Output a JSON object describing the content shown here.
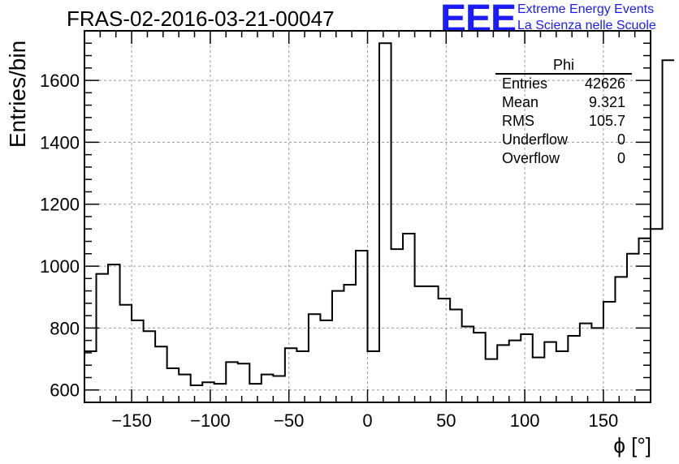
{
  "chart_data": {
    "type": "bar",
    "title": "FRAS-02-2016-03-21-00047",
    "xlabel": "ϕ [°]",
    "ylabel": "Entries/bin",
    "xlim": [
      -180,
      180
    ],
    "ylim": [
      560,
      1760
    ],
    "grid": true,
    "x_ticks": [
      -150,
      -100,
      -50,
      0,
      50,
      100,
      150
    ],
    "x_tick_labels": [
      "−150",
      "−100",
      "−50",
      "0",
      "50",
      "100",
      "150"
    ],
    "y_ticks": [
      600,
      800,
      1000,
      1200,
      1400,
      1600
    ],
    "y_tick_labels": [
      "600",
      "800",
      "1000",
      "1200",
      "1400",
      "1600"
    ],
    "bin_edges_start": -180,
    "bin_width": 7.5,
    "values": [
      725,
      975,
      1005,
      875,
      825,
      790,
      740,
      670,
      650,
      615,
      625,
      620,
      690,
      685,
      620,
      650,
      645,
      735,
      725,
      845,
      825,
      920,
      940,
      1050,
      725,
      1720,
      1055,
      1105,
      935,
      935,
      895,
      860,
      805,
      785,
      700,
      745,
      760,
      780,
      705,
      755,
      725,
      775,
      815,
      800,
      885,
      965,
      1040,
      1090,
      1120,
      1665
    ]
  },
  "logo": {
    "letters": "EEE",
    "line1": "Extreme Energy Events",
    "line2": "La Scienza nelle Scuole"
  },
  "stats": {
    "name": "Phi",
    "rows": [
      {
        "label": "Entries",
        "value": "42626"
      },
      {
        "label": "Mean",
        "value": "9.321"
      },
      {
        "label": "RMS",
        "value": "105.7"
      },
      {
        "label": "Underflow",
        "value": "0"
      },
      {
        "label": "Overflow",
        "value": "0"
      }
    ]
  }
}
